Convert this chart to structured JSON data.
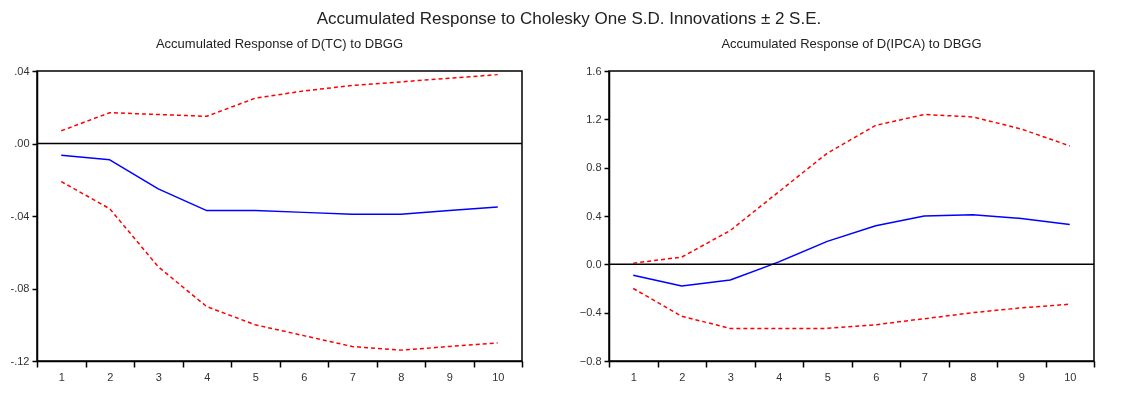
{
  "chart_data": [
    {
      "type": "line",
      "title": "Accumulated Response of D(TC) to DBGG",
      "annotations": [
        "Accumulated Response to Cholesky One S.D. Innovations ± 2 S.E."
      ],
      "categories": [
        "1",
        "2",
        "3",
        "4",
        "5",
        "6",
        "7",
        "8",
        "9",
        "10"
      ],
      "series": [
        {
          "color": "#0000ff",
          "line_style": "solid",
          "values": [
            -0.0065,
            -0.009,
            -0.025,
            -0.037,
            -0.037,
            -0.038,
            -0.039,
            -0.039,
            -0.037,
            -0.035
          ]
        },
        {
          "color": "#ff0000",
          "line_style": "dashed",
          "values": [
            0.007,
            0.017,
            0.016,
            0.015,
            0.025,
            0.029,
            0.032,
            0.034,
            0.036,
            0.038
          ]
        },
        {
          "color": "#ff0000",
          "line_style": "dashed",
          "values": [
            -0.021,
            -0.036,
            -0.068,
            -0.09,
            -0.1,
            -0.106,
            -0.112,
            -0.114,
            -0.112,
            -0.11
          ]
        }
      ],
      "ylim": [
        -0.12,
        0.04
      ],
      "yticks": [
        {
          "value": 0.04,
          "label": ".04"
        },
        {
          "value": 0,
          "label": ".00"
        },
        {
          "value": -0.04,
          "label": "-.04"
        },
        {
          "value": -0.08,
          "label": "-.08"
        },
        {
          "value": -0.12,
          "label": "-.12"
        }
      ],
      "ref_lines": [
        {
          "axis": "y",
          "value": 0,
          "color": "#000000"
        }
      ],
      "grid": false,
      "marker": "none"
    },
    {
      "type": "line",
      "title": "Accumulated Response of D(IPCA) to DBGG",
      "categories": [
        "1",
        "2",
        "3",
        "4",
        "5",
        "6",
        "7",
        "8",
        "9",
        "10"
      ],
      "series": [
        {
          "color": "#0000ff",
          "line_style": "solid",
          "values": [
            -0.09,
            -0.18,
            -0.13,
            0.02,
            0.19,
            0.32,
            0.4,
            0.41,
            0.38,
            0.33
          ]
        },
        {
          "color": "#ff0000",
          "line_style": "dashed",
          "values": [
            0.01,
            0.06,
            0.28,
            0.6,
            0.92,
            1.15,
            1.24,
            1.22,
            1.12,
            0.98
          ]
        },
        {
          "color": "#ff0000",
          "line_style": "dashed",
          "values": [
            -0.2,
            -0.43,
            -0.53,
            -0.53,
            -0.53,
            -0.5,
            -0.45,
            -0.4,
            -0.36,
            -0.33
          ]
        }
      ],
      "ylim": [
        -0.8,
        1.6
      ],
      "yticks": [
        1.6,
        1.2,
        0.8,
        0.4,
        {
          "value": 0,
          "label": "0.0"
        },
        -0.4,
        -0.8
      ],
      "ref_lines": [
        {
          "axis": "y",
          "value": 0,
          "color": "#000000"
        }
      ],
      "grid": false,
      "marker": "none"
    }
  ]
}
